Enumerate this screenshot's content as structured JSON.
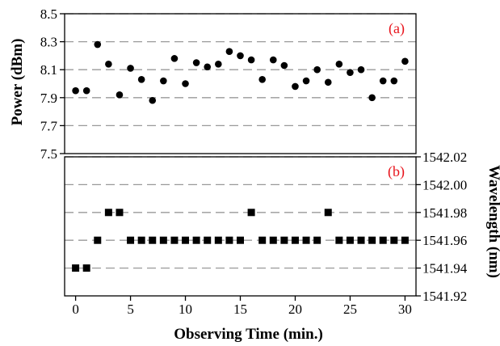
{
  "chart_data": [
    {
      "type": "scatter",
      "panel_label": "(a)",
      "ylabel": "Power (dBm)",
      "xlabel": "",
      "ylim": [
        7.5,
        8.5
      ],
      "yticks": [
        "7.5",
        "7.7",
        "7.9",
        "8.1",
        "8.3",
        "8.5"
      ],
      "xlim": [
        -1,
        31
      ],
      "grid": true,
      "marker": "circle",
      "series": [
        {
          "x": [
            0,
            1,
            2,
            3,
            4,
            5,
            6,
            7,
            8,
            9,
            10,
            11,
            12,
            13,
            14,
            15,
            16,
            17,
            18,
            19,
            20,
            21,
            22,
            23,
            24,
            25,
            26,
            27,
            28,
            29,
            30
          ],
          "y": [
            7.95,
            7.95,
            8.28,
            8.14,
            7.92,
            8.11,
            8.03,
            7.88,
            8.02,
            8.18,
            8.0,
            8.15,
            8.12,
            8.14,
            8.23,
            8.2,
            8.17,
            8.03,
            8.17,
            8.13,
            7.98,
            8.02,
            8.1,
            8.01,
            8.14,
            8.08,
            8.1,
            7.9,
            8.02,
            8.02,
            8.16
          ]
        }
      ]
    },
    {
      "type": "scatter",
      "panel_label": "(b)",
      "ylabel": "Wavelength (nm)",
      "xlabel": "Observing Time (min.)",
      "ylim": [
        1541.92,
        1542.02
      ],
      "yticks": [
        "1541.92",
        "1541.94",
        "1541.96",
        "1541.98",
        "1542.00",
        "1542.02"
      ],
      "xlim": [
        -1,
        31
      ],
      "xticks": [
        "0",
        "5",
        "10",
        "15",
        "20",
        "25",
        "30"
      ],
      "grid": true,
      "marker": "square",
      "series": [
        {
          "x": [
            0,
            1,
            2,
            3,
            4,
            5,
            6,
            7,
            8,
            9,
            10,
            11,
            12,
            13,
            14,
            15,
            16,
            17,
            18,
            19,
            20,
            21,
            22,
            23,
            24,
            25,
            26,
            27,
            28,
            29,
            30
          ],
          "y": [
            1541.94,
            1541.94,
            1541.96,
            1541.98,
            1541.98,
            1541.96,
            1541.96,
            1541.96,
            1541.96,
            1541.96,
            1541.96,
            1541.96,
            1541.96,
            1541.96,
            1541.96,
            1541.96,
            1541.98,
            1541.96,
            1541.96,
            1541.96,
            1541.96,
            1541.96,
            1541.96,
            1541.98,
            1541.96,
            1541.96,
            1541.96,
            1541.96,
            1541.96,
            1541.96,
            1541.96
          ]
        }
      ]
    }
  ]
}
